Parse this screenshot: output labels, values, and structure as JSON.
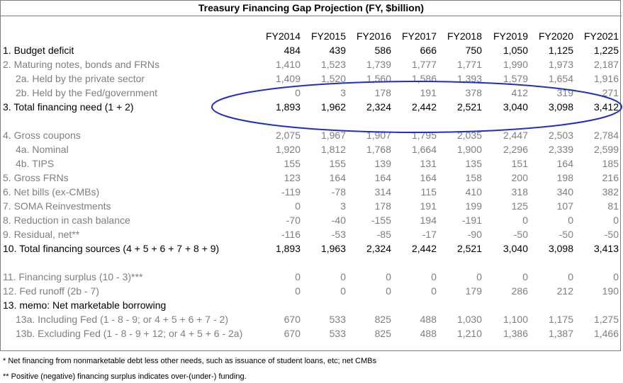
{
  "title": "Treasury Financing Gap Projection (FY, $billion)",
  "years": [
    "FY2014",
    "FY2015",
    "FY2016",
    "FY2017",
    "FY2018",
    "FY2019",
    "FY2020",
    "FY2021"
  ],
  "rows": [
    {
      "label": "1. Budget deficit",
      "style": "black",
      "indent": false,
      "values": [
        "484",
        "439",
        "586",
        "666",
        "750",
        "1,050",
        "1,125",
        "1,225"
      ]
    },
    {
      "label": "2. Maturing notes, bonds and FRNs",
      "style": "gray",
      "indent": false,
      "values": [
        "1,410",
        "1,523",
        "1,739",
        "1,777",
        "1,771",
        "1,990",
        "1,973",
        "2,187"
      ]
    },
    {
      "label": "2a. Held by the private sector",
      "style": "gray",
      "indent": true,
      "values": [
        "1,409",
        "1,520",
        "1,560",
        "1,586",
        "1,393",
        "1,579",
        "1,654",
        "1,916"
      ]
    },
    {
      "label": "2b. Held by the Fed/government",
      "style": "gray",
      "indent": true,
      "values": [
        "0",
        "3",
        "178",
        "191",
        "378",
        "412",
        "319",
        "271"
      ]
    },
    {
      "label": "3. Total financing need (1 + 2)",
      "style": "black",
      "indent": false,
      "values": [
        "1,893",
        "1,962",
        "2,324",
        "2,442",
        "2,521",
        "3,040",
        "3,098",
        "3,412"
      ]
    },
    {
      "label": "",
      "style": "black",
      "indent": false,
      "values": [
        "",
        "",
        "",
        "",
        "",
        "",
        "",
        ""
      ]
    },
    {
      "label": "4. Gross coupons",
      "style": "gray",
      "indent": false,
      "values": [
        "2,075",
        "1,967",
        "1,907",
        "1,795",
        "2,035",
        "2,447",
        "2,503",
        "2,784"
      ]
    },
    {
      "label": "4a. Nominal",
      "style": "gray",
      "indent": true,
      "values": [
        "1,920",
        "1,812",
        "1,768",
        "1,664",
        "1,900",
        "2,296",
        "2,339",
        "2,599"
      ]
    },
    {
      "label": "4b. TIPS",
      "style": "gray",
      "indent": true,
      "values": [
        "155",
        "155",
        "139",
        "131",
        "135",
        "151",
        "164",
        "185"
      ]
    },
    {
      "label": "5. Gross FRNs",
      "style": "gray",
      "indent": false,
      "values": [
        "123",
        "164",
        "164",
        "164",
        "158",
        "200",
        "198",
        "216"
      ]
    },
    {
      "label": "6. Net bills (ex-CMBs)",
      "style": "gray",
      "indent": false,
      "values": [
        "-119",
        "-78",
        "314",
        "115",
        "410",
        "318",
        "340",
        "382"
      ]
    },
    {
      "label": "7. SOMA Reinvestments",
      "style": "gray",
      "indent": false,
      "values": [
        "0",
        "3",
        "178",
        "191",
        "199",
        "125",
        "107",
        "81"
      ]
    },
    {
      "label": "8. Reduction in cash balance",
      "style": "gray",
      "indent": false,
      "values": [
        "-70",
        "-40",
        "-155",
        "194",
        "-191",
        "0",
        "0",
        "0"
      ]
    },
    {
      "label": "9. Residual, net**",
      "style": "gray",
      "indent": false,
      "values": [
        "-116",
        "-53",
        "-85",
        "-17",
        "-90",
        "-50",
        "-50",
        "-50"
      ]
    },
    {
      "label": "10. Total financing sources (4 + 5 + 6 + 7 + 8 + 9)",
      "style": "black",
      "indent": false,
      "values": [
        "1,893",
        "1,963",
        "2,324",
        "2,442",
        "2,521",
        "3,040",
        "3,098",
        "3,413"
      ]
    },
    {
      "label": "",
      "style": "black",
      "indent": false,
      "values": [
        "",
        "",
        "",
        "",
        "",
        "",
        "",
        ""
      ]
    },
    {
      "label": "11. Financing surplus (10 - 3)***",
      "style": "gray",
      "indent": false,
      "values": [
        "0",
        "0",
        "0",
        "0",
        "0",
        "0",
        "0",
        "0"
      ]
    },
    {
      "label": "12. Fed runoff (2b - 7)",
      "style": "gray",
      "indent": false,
      "values": [
        "0",
        "0",
        "0",
        "0",
        "179",
        "286",
        "212",
        "190"
      ]
    },
    {
      "label": "13.  memo: Net marketable borrowing",
      "style": "black",
      "indent": false,
      "values": [
        "",
        "",
        "",
        "",
        "",
        "",
        "",
        ""
      ]
    },
    {
      "label": "13a. Including Fed (1 - 8 - 9; or 4 + 5 + 6 + 7 - 2)",
      "style": "gray",
      "indent": true,
      "values": [
        "670",
        "533",
        "825",
        "488",
        "1,030",
        "1,100",
        "1,175",
        "1,275"
      ]
    },
    {
      "label": "13b. Excluding Fed (1 - 8 - 9 + 12; or 4 + 5 + 6 - 2a)",
      "style": "gray",
      "indent": true,
      "values": [
        "670",
        "533",
        "825",
        "488",
        "1,210",
        "1,386",
        "1,387",
        "1,466"
      ]
    }
  ],
  "notes": [
    "* Net financing from nonmarketable debt less other needs, such as issuance of student loans, etc; net CMBs",
    "** Positive (negative) financing surplus indicates over-(under-) funding."
  ],
  "colors": {
    "gray_text": "#7f7f7f",
    "ellipse": "#1f2fbf",
    "border": "#7f7f7f"
  }
}
